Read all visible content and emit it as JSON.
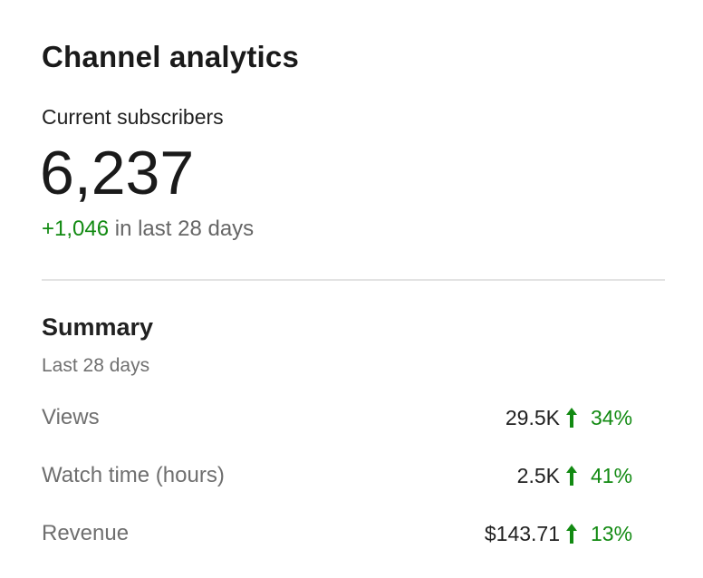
{
  "header": {
    "title": "Channel analytics"
  },
  "subscribers": {
    "label": "Current subscribers",
    "count": "6,237",
    "change": "+1,046",
    "period": "in last 28 days"
  },
  "summary": {
    "title": "Summary",
    "period": "Last 28 days",
    "rows": [
      {
        "label": "Views",
        "value": "29.5K",
        "change": "34%"
      },
      {
        "label": "Watch time (hours)",
        "value": "2.5K",
        "change": "41%"
      },
      {
        "label": "Revenue",
        "value": "$143.71",
        "change": "13%"
      }
    ]
  }
}
